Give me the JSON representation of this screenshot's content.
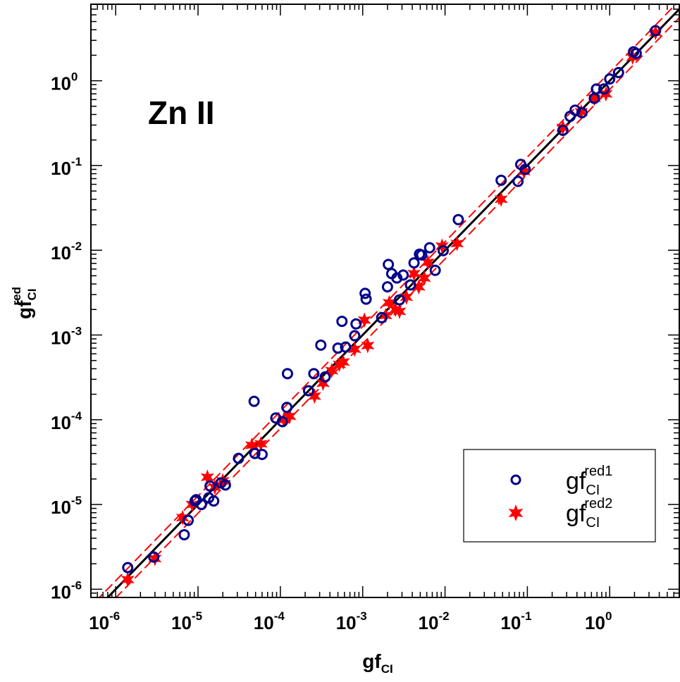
{
  "chart_data": {
    "type": "scatter",
    "title": "Zn II",
    "xlabel": {
      "base": "gf",
      "sub": "CI"
    },
    "ylabel": {
      "base": "gf",
      "sub": "CI",
      "sup": "red"
    },
    "xscale": "log",
    "yscale": "log",
    "xlim": [
      5e-07,
      7.0
    ],
    "ylim": [
      8e-07,
      8.0
    ],
    "xticks": [
      {
        "base": "10",
        "exp": "-6",
        "value": 1e-06
      },
      {
        "base": "10",
        "exp": "-5",
        "value": 1e-05
      },
      {
        "base": "10",
        "exp": "-4",
        "value": 0.0001
      },
      {
        "base": "10",
        "exp": "-3",
        "value": 0.001
      },
      {
        "base": "10",
        "exp": "-2",
        "value": 0.01
      },
      {
        "base": "10",
        "exp": "-1",
        "value": 0.1
      },
      {
        "base": "10",
        "exp": "0",
        "value": 1
      }
    ],
    "yticks": [
      {
        "base": "10",
        "exp": "-6",
        "value": 1e-06
      },
      {
        "base": "10",
        "exp": "-5",
        "value": 1e-05
      },
      {
        "base": "10",
        "exp": "-4",
        "value": 0.0001
      },
      {
        "base": "10",
        "exp": "-3",
        "value": 0.001
      },
      {
        "base": "10",
        "exp": "-2",
        "value": 0.01
      },
      {
        "base": "10",
        "exp": "-1",
        "value": 0.1
      },
      {
        "base": "10",
        "exp": "0",
        "value": 1
      }
    ],
    "lines": [
      {
        "kind": "identity",
        "factor": 1.0,
        "color": "#000000",
        "style": "solid"
      },
      {
        "kind": "upper-band",
        "factor": 1.26,
        "color": "#ff0000",
        "style": "dashed"
      },
      {
        "kind": "lower-band",
        "factor": 0.79,
        "color": "#ff0000",
        "style": "dashed"
      }
    ],
    "legend": {
      "position": "bottom-right",
      "entries": [
        {
          "base": "gf",
          "sub": "CI",
          "sup": "red1",
          "marker": "circle"
        },
        {
          "base": "gf",
          "sub": "CI",
          "sup": "red2",
          "marker": "star"
        }
      ]
    },
    "series": [
      {
        "marker": "circle",
        "color": "#00008b",
        "x": [
          1.4e-06,
          2.9e-06,
          6.8e-06,
          7.6e-06,
          9.2e-06,
          9.5e-06,
          1.1e-05,
          1.35e-05,
          1.4e-05,
          1.55e-05,
          1.9e-05,
          2.15e-05,
          3.1e-05,
          4.8e-05,
          4.9e-05,
          6e-05,
          8.8e-05,
          0.000106,
          0.00012,
          0.000122,
          0.00022,
          0.000255,
          0.00031,
          0.00035,
          0.0005,
          0.00056,
          0.00062,
          0.0008,
          0.00083,
          0.00107,
          0.0011,
          0.0017,
          0.002,
          0.00205,
          0.00225,
          0.0026,
          0.0028,
          0.0031,
          0.0038,
          0.0042,
          0.0049,
          0.0052,
          0.0065,
          0.0076,
          0.0095,
          0.0145,
          0.048,
          0.077,
          0.083,
          0.094,
          0.27,
          0.33,
          0.38,
          0.46,
          0.65,
          0.69,
          0.85,
          1.0,
          1.28,
          1.95,
          2.1,
          3.6
        ],
        "y": [
          1.8e-06,
          2.4e-06,
          4.4e-06,
          6.5e-06,
          1.1e-05,
          1.14e-05,
          1e-05,
          1.2e-05,
          1.65e-05,
          1.1e-05,
          1.8e-05,
          1.7e-05,
          3.5e-05,
          0.000165,
          4e-05,
          3.9e-05,
          0.000105,
          9.5e-05,
          0.00014,
          0.00035,
          0.00022,
          0.00035,
          0.00076,
          0.00032,
          0.0007,
          0.00145,
          0.00072,
          0.00098,
          0.00135,
          0.0031,
          0.00265,
          0.0016,
          0.0037,
          0.0068,
          0.0053,
          0.0047,
          0.0026,
          0.0051,
          0.0039,
          0.0071,
          0.009,
          0.0088,
          0.0107,
          0.0058,
          0.0099,
          0.023,
          0.067,
          0.065,
          0.103,
          0.09,
          0.26,
          0.38,
          0.45,
          0.42,
          0.62,
          0.8,
          0.8,
          1.05,
          1.25,
          2.2,
          2.1,
          3.9
        ]
      },
      {
        "marker": "star",
        "color": "#ff0000",
        "x": [
          1.4e-06,
          3e-06,
          6.5e-06,
          8.5e-06,
          1.3e-05,
          1.6e-05,
          2e-05,
          4.5e-05,
          5.8e-05,
          0.00011,
          0.00013,
          0.00026,
          0.00033,
          0.00042,
          0.00052,
          0.00058,
          0.0008,
          0.00105,
          0.00115,
          0.0019,
          0.0021,
          0.0025,
          0.0028,
          0.0034,
          0.0042,
          0.0048,
          0.0056,
          0.0062,
          0.0092,
          0.014,
          0.048,
          0.091,
          0.27,
          0.45,
          0.65,
          0.9,
          1.9,
          3.6
        ],
        "y": [
          1.3e-06,
          2.3e-06,
          7e-06,
          1e-05,
          2.1e-05,
          1.6e-05,
          1.9e-05,
          5e-05,
          5.2e-05,
          0.0001,
          0.00011,
          0.00019,
          0.00027,
          0.00038,
          0.00045,
          0.00048,
          0.00068,
          0.0015,
          0.00075,
          0.0017,
          0.0024,
          0.002,
          0.0019,
          0.0028,
          0.0053,
          0.0037,
          0.0047,
          0.0072,
          0.0112,
          0.012,
          0.04,
          0.085,
          0.28,
          0.43,
          0.62,
          0.7,
          1.9,
          3.7
        ]
      }
    ]
  }
}
